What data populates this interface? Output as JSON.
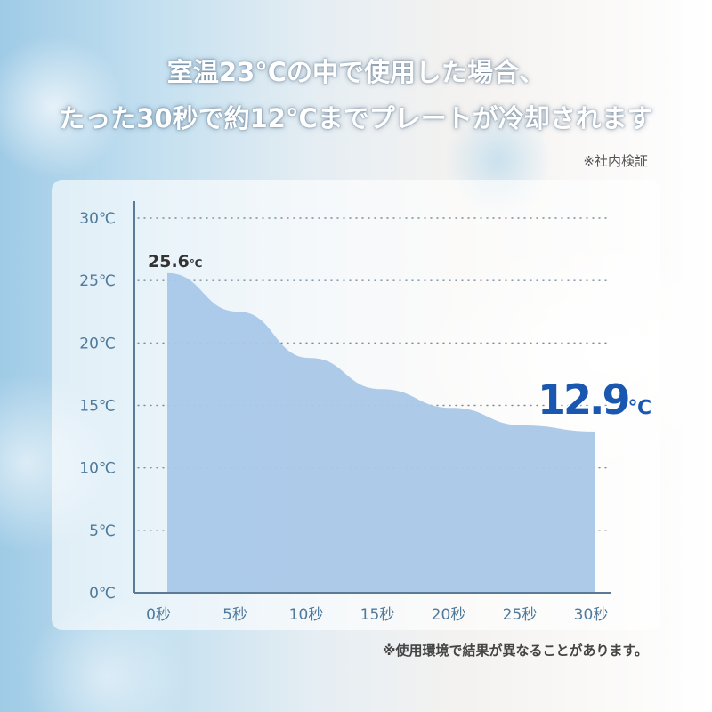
{
  "header": {
    "line1": "室温23°Cの中で使用した場合、",
    "line2": "たった30秒で約12°Cまでプレートが冷却されます",
    "note": "※社内検証"
  },
  "footnote": "※使用環境で結果が異なることがあります。",
  "colors": {
    "area_top": "#4a9ad6",
    "area_bottom": "#a9c8e8",
    "axis": "#5a7a95",
    "tick_text": "#4f7a9c",
    "highlight": "#1a57b0"
  },
  "chart_data": {
    "type": "area",
    "title": "",
    "xlabel": "",
    "ylabel": "",
    "x_ticks": [
      "0秒",
      "5秒",
      "10秒",
      "15秒",
      "20秒",
      "25秒",
      "30秒"
    ],
    "y_ticks": [
      "0℃",
      "5℃",
      "10℃",
      "15℃",
      "20℃",
      "25℃",
      "30℃"
    ],
    "ylim": [
      0,
      30
    ],
    "xlim": [
      0,
      30
    ],
    "grid": "horizontal dotted",
    "x": [
      0,
      5,
      10,
      15,
      20,
      25,
      30
    ],
    "values": [
      25.6,
      22.5,
      18.8,
      16.3,
      14.8,
      13.4,
      12.9
    ],
    "annotations": {
      "start_value": "25.6",
      "start_unit": "℃",
      "end_value": "12.9",
      "end_unit": "℃"
    }
  }
}
